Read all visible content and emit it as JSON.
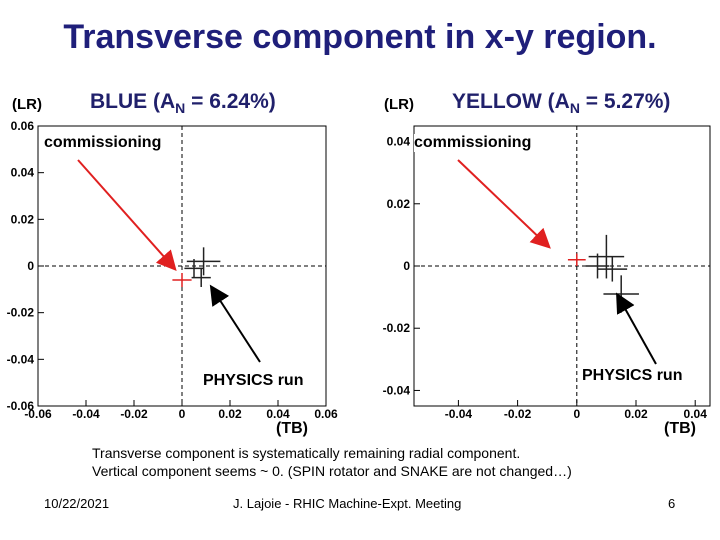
{
  "slide": {
    "title": "Transverse component in x-y region.",
    "left_lr": "(LR)",
    "right_lr": "(LR)",
    "blue_label_pre": "BLUE (A",
    "blue_label_sub": "N",
    "blue_label_post": " = 6.24%)",
    "yellow_label_pre": "YELLOW (A",
    "yellow_label_sub": "N",
    "yellow_label_post": " = 5.27%)",
    "left_tb": "(TB)",
    "right_tb": "(TB)",
    "note_line1": "Transverse component is systematically remaining radial component.",
    "note_line2": "Vertical component seems ~ 0. (SPIN rotator and SNAKE are not changed…)",
    "footer_date": "10/22/2021",
    "footer_center": "J. Lajoie - RHIC Machine-Expt. Meeting",
    "footer_page": "6"
  },
  "chart_data": [
    {
      "type": "scatter",
      "beam": "BLUE",
      "xlim": [
        -0.06,
        0.06
      ],
      "ylim": [
        -0.06,
        0.06
      ],
      "xticks": [
        "-0.06",
        "-0.04",
        "-0.02",
        "0",
        "0.02",
        "0.04",
        "0.06"
      ],
      "yticks": [
        "0.06",
        "0.04",
        "0.02",
        "0",
        "-0.02",
        "-0.04",
        "-0.06"
      ],
      "xtick_values": [
        -0.06,
        -0.04,
        -0.02,
        0,
        0.02,
        0.04,
        0.06
      ],
      "ytick_values": [
        0.06,
        0.04,
        0.02,
        0,
        -0.02,
        -0.04,
        -0.06
      ],
      "annotation_commissioning": "commissioning",
      "annotation_physics": "PHYSICS run",
      "commissioning_points": [
        {
          "x": 0.0,
          "y": -0.006,
          "ex": 0.004,
          "ey": 0.003
        }
      ],
      "physics_points": [
        {
          "x": 0.009,
          "y": 0.002,
          "ex": 0.007,
          "ey": 0.006
        },
        {
          "x": 0.005,
          "y": -0.001,
          "ex": 0.004,
          "ey": 0.004
        },
        {
          "x": 0.008,
          "y": -0.005,
          "ex": 0.004,
          "ey": 0.004
        }
      ]
    },
    {
      "type": "scatter",
      "beam": "YELLOW",
      "xlim": [
        -0.055,
        0.045
      ],
      "ylim": [
        -0.045,
        0.045
      ],
      "xticks": [
        "-0.04",
        "-0.02",
        "0",
        "0.02",
        "0.04"
      ],
      "yticks": [
        "0.04",
        "0.02",
        "0",
        "-0.02",
        "-0.04"
      ],
      "xtick_values": [
        -0.04,
        -0.02,
        0,
        0.02,
        0.04
      ],
      "ytick_values": [
        0.04,
        0.02,
        0,
        -0.02,
        -0.04
      ],
      "annotation_commissioning": "commissioning",
      "annotation_physics": "PHYSICS run",
      "commissioning_points": [
        {
          "x": 0.0,
          "y": 0.002,
          "ex": 0.003,
          "ey": 0.002
        }
      ],
      "physics_points": [
        {
          "x": 0.01,
          "y": 0.003,
          "ex": 0.006,
          "ey": 0.007
        },
        {
          "x": 0.012,
          "y": -0.001,
          "ex": 0.005,
          "ey": 0.004
        },
        {
          "x": 0.015,
          "y": -0.009,
          "ex": 0.006,
          "ey": 0.006
        },
        {
          "x": 0.007,
          "y": 0.0,
          "ex": 0.004,
          "ey": 0.004
        }
      ]
    }
  ]
}
